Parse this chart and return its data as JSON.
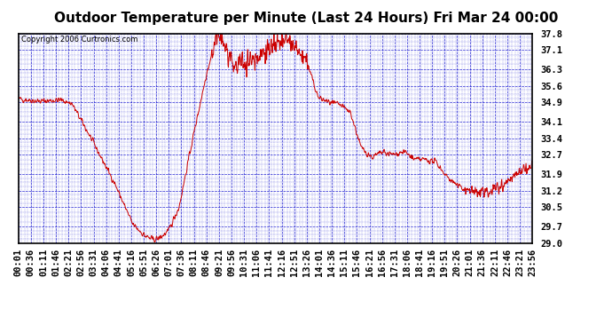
{
  "title": "Outdoor Temperature per Minute (Last 24 Hours) Fri Mar 24 00:00",
  "copyright": "Copyright 2006 Curtronics.com",
  "yticks": [
    29.0,
    29.7,
    30.5,
    31.2,
    31.9,
    32.7,
    33.4,
    34.1,
    34.9,
    35.6,
    36.3,
    37.1,
    37.8
  ],
  "ymin": 29.0,
  "ymax": 37.8,
  "line_color": "#cc0000",
  "grid_color": "#0000cc",
  "bg_color": "#ffffff",
  "title_fontsize": 11,
  "copyright_fontsize": 6,
  "tick_fontsize": 7.5,
  "xtick_labels": [
    "00:01",
    "00:36",
    "01:11",
    "01:46",
    "02:21",
    "02:56",
    "03:31",
    "04:06",
    "04:41",
    "05:16",
    "05:51",
    "06:26",
    "07:01",
    "07:36",
    "08:11",
    "08:46",
    "09:21",
    "09:56",
    "10:31",
    "11:06",
    "11:41",
    "12:16",
    "12:51",
    "13:26",
    "14:01",
    "14:36",
    "15:11",
    "15:46",
    "16:21",
    "16:56",
    "17:31",
    "18:06",
    "18:41",
    "19:16",
    "19:51",
    "20:26",
    "21:01",
    "21:36",
    "22:11",
    "22:46",
    "23:21",
    "23:56"
  ],
  "control_minutes": [
    0,
    60,
    120,
    150,
    200,
    270,
    320,
    355,
    375,
    395,
    420,
    450,
    490,
    530,
    555,
    561,
    575,
    590,
    600,
    630,
    660,
    700,
    720,
    750,
    780,
    810,
    840,
    870,
    900,
    930,
    960,
    990,
    1020,
    1050,
    1080,
    1110,
    1140,
    1170,
    1200,
    1230,
    1260,
    1295,
    1310,
    1330,
    1360,
    1390,
    1420,
    1440
  ],
  "control_temps": [
    35.05,
    34.95,
    35.0,
    34.85,
    33.5,
    31.5,
    29.8,
    29.3,
    29.15,
    29.2,
    29.5,
    30.5,
    33.5,
    36.3,
    37.5,
    37.75,
    37.4,
    36.8,
    36.3,
    36.6,
    36.7,
    37.2,
    37.3,
    37.5,
    37.1,
    36.5,
    35.1,
    34.9,
    34.8,
    34.5,
    33.0,
    32.6,
    32.8,
    32.7,
    32.85,
    32.5,
    32.5,
    32.4,
    31.8,
    31.4,
    31.2,
    31.1,
    31.1,
    31.3,
    31.5,
    31.8,
    32.1,
    32.2
  ]
}
